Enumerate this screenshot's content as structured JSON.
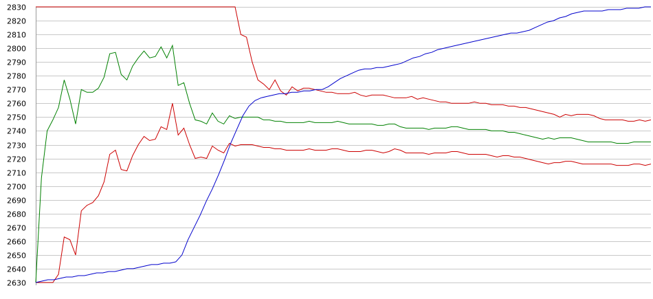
{
  "chart_data": {
    "type": "line",
    "title": "",
    "xlabel": "",
    "ylabel": "",
    "ylim": [
      2630,
      2830
    ],
    "y_ticks": [
      2630,
      2640,
      2650,
      2660,
      2670,
      2680,
      2690,
      2700,
      2710,
      2720,
      2730,
      2740,
      2750,
      2760,
      2770,
      2780,
      2790,
      2800,
      2810,
      2820,
      2830
    ],
    "x_tick_labels": [],
    "grid": "horizontal",
    "legend": "none",
    "series": [
      {
        "color": "#cc0000",
        "values": [
          2830,
          2830,
          2830,
          2830,
          2830,
          2830,
          2830,
          2830,
          2830,
          2830,
          2830,
          2830,
          2830,
          2830,
          2830,
          2830,
          2830,
          2830,
          2830,
          2830,
          2830,
          2830,
          2830,
          2830,
          2830,
          2830,
          2830,
          2830,
          2830,
          2830,
          2830,
          2830,
          2830,
          2830,
          2830,
          2830,
          2810,
          2808,
          2790,
          2777,
          2774,
          2770,
          2777,
          2769,
          2766,
          2772,
          2769,
          2771,
          2771,
          2770,
          2769,
          2768,
          2768,
          2767,
          2767,
          2767,
          2768,
          2766,
          2765,
          2766,
          2766,
          2766,
          2765,
          2764,
          2764,
          2764,
          2765,
          2763,
          2764,
          2763,
          2762,
          2761,
          2761,
          2760,
          2760,
          2760,
          2760,
          2761,
          2760,
          2760,
          2759,
          2759,
          2759,
          2758,
          2758,
          2757,
          2757,
          2756,
          2755,
          2754,
          2753,
          2752,
          2750,
          2752,
          2751,
          2752,
          2752,
          2752,
          2751,
          2749,
          2748,
          2748,
          2748,
          2748,
          2747,
          2747,
          2748,
          2747,
          2748
        ]
      },
      {
        "color": "#008000",
        "values": [
          2630,
          2706,
          2740,
          2748,
          2757,
          2777,
          2763,
          2745,
          2770,
          2768,
          2768,
          2771,
          2779,
          2796,
          2797,
          2781,
          2777,
          2787,
          2793,
          2798,
          2793,
          2794,
          2801,
          2793,
          2802,
          2773,
          2775,
          2760,
          2748,
          2747,
          2745,
          2753,
          2747,
          2745,
          2751,
          2749,
          2750,
          2750,
          2750,
          2750,
          2748,
          2748,
          2747,
          2747,
          2746,
          2746,
          2746,
          2746,
          2747,
          2746,
          2746,
          2746,
          2746,
          2747,
          2746,
          2745,
          2745,
          2745,
          2745,
          2745,
          2744,
          2744,
          2745,
          2745,
          2743,
          2742,
          2742,
          2742,
          2742,
          2741,
          2742,
          2742,
          2742,
          2743,
          2743,
          2742,
          2741,
          2741,
          2741,
          2741,
          2740,
          2740,
          2740,
          2739,
          2739,
          2738,
          2737,
          2736,
          2735,
          2734,
          2735,
          2734,
          2735,
          2735,
          2735,
          2734,
          2733,
          2732,
          2732,
          2732,
          2732,
          2732,
          2731,
          2731,
          2731,
          2732,
          2732,
          2732,
          2732
        ]
      },
      {
        "color": "#cc0000",
        "values": [
          2630,
          2630,
          2630,
          2630,
          2636,
          2663,
          2661,
          2650,
          2682,
          2686,
          2688,
          2693,
          2703,
          2723,
          2726,
          2712,
          2711,
          2722,
          2730,
          2736,
          2733,
          2734,
          2743,
          2741,
          2760,
          2737,
          2742,
          2730,
          2720,
          2721,
          2720,
          2729,
          2726,
          2724,
          2731,
          2729,
          2730,
          2730,
          2730,
          2729,
          2728,
          2728,
          2727,
          2727,
          2726,
          2726,
          2726,
          2726,
          2727,
          2726,
          2726,
          2726,
          2727,
          2727,
          2726,
          2725,
          2725,
          2725,
          2726,
          2726,
          2725,
          2724,
          2725,
          2727,
          2726,
          2724,
          2724,
          2724,
          2724,
          2723,
          2724,
          2724,
          2724,
          2725,
          2725,
          2724,
          2723,
          2723,
          2723,
          2723,
          2722,
          2721,
          2722,
          2722,
          2721,
          2721,
          2720,
          2719,
          2718,
          2717,
          2716,
          2717,
          2717,
          2718,
          2718,
          2717,
          2716,
          2716,
          2716,
          2716,
          2716,
          2716,
          2715,
          2715,
          2715,
          2716,
          2716,
          2715,
          2716
        ]
      },
      {
        "color": "#0000cc",
        "values": [
          2630,
          2631,
          2632,
          2632,
          2633,
          2634,
          2634,
          2635,
          2635,
          2636,
          2637,
          2637,
          2638,
          2638,
          2639,
          2640,
          2640,
          2641,
          2642,
          2643,
          2643,
          2644,
          2644,
          2645,
          2650,
          2661,
          2670,
          2679,
          2689,
          2698,
          2708,
          2719,
          2731,
          2741,
          2751,
          2758,
          2762,
          2764,
          2765,
          2766,
          2767,
          2767,
          2768,
          2768,
          2769,
          2769,
          2770,
          2770,
          2772,
          2775,
          2778,
          2780,
          2782,
          2784,
          2785,
          2785,
          2786,
          2786,
          2787,
          2788,
          2789,
          2791,
          2793,
          2794,
          2796,
          2797,
          2799,
          2800,
          2801,
          2802,
          2803,
          2804,
          2805,
          2806,
          2807,
          2808,
          2809,
          2810,
          2811,
          2811,
          2812,
          2813,
          2815,
          2817,
          2819,
          2820,
          2822,
          2823,
          2825,
          2826,
          2827,
          2827,
          2827,
          2827,
          2828,
          2828,
          2828,
          2829,
          2829,
          2829,
          2830,
          2830
        ]
      }
    ]
  }
}
